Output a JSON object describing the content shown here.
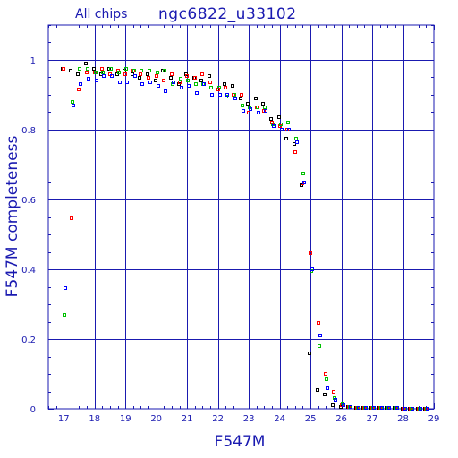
{
  "header": {
    "subset_label": "All chips",
    "field_label": "ngc6822_u33102"
  },
  "colors": {
    "frame": "#1a1ab0",
    "series": [
      "#000000",
      "#ff0000",
      "#00c000",
      "#0000ff"
    ]
  },
  "chart_data": {
    "type": "scatter",
    "xlabel": "F547M",
    "ylabel": "F547M completeness",
    "xlim": [
      16.5,
      29
    ],
    "ylim": [
      0,
      1.1
    ],
    "xticks": [
      17,
      18,
      19,
      20,
      21,
      22,
      23,
      24,
      25,
      26,
      27,
      28,
      29
    ],
    "yticks": [
      0,
      0.2,
      0.4,
      0.6,
      0.8,
      1
    ],
    "ytick_labels": [
      "0",
      "0.2",
      "0.4",
      "0.6",
      "0.8",
      "1"
    ],
    "grid": true,
    "series": [
      {
        "color": "#000000",
        "x": [
          17.0,
          17.25,
          17.5,
          17.75,
          18.0,
          18.25,
          18.5,
          18.75,
          19.0,
          19.25,
          19.5,
          19.75,
          20.0,
          20.25,
          20.5,
          20.75,
          21.0,
          21.25,
          21.5,
          21.75,
          22.0,
          22.25,
          22.5,
          22.75,
          23.0,
          23.25,
          23.5,
          23.75,
          24.0,
          24.25,
          24.5,
          24.75,
          25.0,
          25.25,
          25.5,
          25.75,
          26.0,
          26.25,
          26.5,
          26.75,
          27.0,
          27.25,
          27.5,
          27.75,
          28.0,
          28.25,
          28.5,
          28.75
        ],
        "y": [
          0.975,
          0.97,
          0.96,
          0.99,
          0.975,
          0.96,
          0.975,
          0.96,
          0.97,
          0.96,
          0.95,
          0.96,
          0.94,
          0.97,
          0.95,
          0.93,
          0.96,
          0.95,
          0.94,
          0.955,
          0.915,
          0.93,
          0.925,
          0.89,
          0.875,
          0.89,
          0.875,
          0.83,
          0.835,
          0.775,
          0.76,
          0.64,
          0.16,
          0.055,
          0.04,
          0.01,
          0.005,
          0.005,
          0.003,
          0.003,
          0.002,
          0.002,
          0.002,
          0.002,
          0.001,
          0.001,
          0.001,
          0.001
        ]
      },
      {
        "color": "#ff0000",
        "x": [
          17.0,
          17.25,
          17.5,
          17.75,
          18.0,
          18.25,
          18.5,
          18.75,
          19.0,
          19.25,
          19.5,
          19.75,
          20.0,
          20.25,
          20.5,
          20.75,
          21.0,
          21.25,
          21.5,
          21.75,
          22.0,
          22.25,
          22.5,
          22.75,
          23.0,
          23.25,
          23.5,
          23.75,
          24.0,
          24.25,
          24.5,
          24.75,
          25.0,
          25.25,
          25.5,
          25.75,
          26.0,
          26.25,
          26.5,
          26.75,
          27.0,
          27.25,
          27.5,
          27.75,
          28.0,
          28.25,
          28.5,
          28.75
        ],
        "y": [
          0.975,
          0.545,
          0.915,
          0.965,
          0.965,
          0.975,
          0.96,
          0.97,
          0.96,
          0.97,
          0.96,
          0.95,
          0.955,
          0.94,
          0.96,
          0.935,
          0.955,
          0.95,
          0.96,
          0.935,
          0.915,
          0.92,
          0.9,
          0.9,
          0.85,
          0.865,
          0.855,
          0.82,
          0.81,
          0.8,
          0.735,
          0.645,
          0.445,
          0.245,
          0.1,
          0.05,
          0.01,
          0.005,
          0.003,
          0.003,
          0.002,
          0.002,
          0.002,
          0.002,
          0.001,
          0.001,
          0.001,
          0.001
        ]
      },
      {
        "color": "#00c000",
        "x": [
          17.0,
          17.25,
          17.5,
          17.75,
          18.0,
          18.25,
          18.5,
          18.75,
          19.0,
          19.25,
          19.5,
          19.75,
          20.0,
          20.25,
          20.5,
          20.75,
          21.0,
          21.25,
          21.5,
          21.75,
          22.0,
          22.25,
          22.5,
          22.75,
          23.0,
          23.25,
          23.5,
          23.75,
          24.0,
          24.25,
          24.5,
          24.75,
          25.0,
          25.25,
          25.5,
          25.75,
          26.0,
          26.25,
          26.5,
          26.75,
          27.0,
          27.25,
          27.5,
          27.75,
          28.0,
          28.25,
          28.5,
          28.75
        ],
        "y": [
          0.27,
          0.88,
          0.975,
          0.975,
          0.965,
          0.965,
          0.975,
          0.965,
          0.975,
          0.97,
          0.97,
          0.97,
          0.965,
          0.97,
          0.93,
          0.945,
          0.94,
          0.93,
          0.93,
          0.92,
          0.92,
          0.895,
          0.9,
          0.87,
          0.865,
          0.865,
          0.865,
          0.815,
          0.815,
          0.82,
          0.775,
          0.675,
          0.395,
          0.18,
          0.085,
          0.03,
          0.015,
          0.005,
          0.003,
          0.003,
          0.002,
          0.002,
          0.002,
          0.002,
          0.001,
          0.001,
          0.001,
          0.001
        ]
      },
      {
        "color": "#0000ff",
        "x": [
          17.0,
          17.25,
          17.5,
          17.75,
          18.0,
          18.25,
          18.5,
          18.75,
          19.0,
          19.25,
          19.5,
          19.75,
          20.0,
          20.25,
          20.5,
          20.75,
          21.0,
          21.25,
          21.5,
          21.75,
          22.0,
          22.25,
          22.5,
          22.75,
          23.0,
          23.25,
          23.5,
          23.75,
          24.0,
          24.25,
          24.5,
          24.75,
          25.0,
          25.25,
          25.5,
          25.75,
          26.0,
          26.25,
          26.5,
          26.75,
          27.0,
          27.25,
          27.5,
          27.75,
          28.0,
          28.25,
          28.5,
          28.75
        ],
        "y": [
          0.345,
          0.87,
          0.93,
          0.945,
          0.94,
          0.955,
          0.955,
          0.935,
          0.935,
          0.955,
          0.93,
          0.935,
          0.925,
          0.91,
          0.935,
          0.92,
          0.925,
          0.905,
          0.93,
          0.9,
          0.9,
          0.9,
          0.89,
          0.855,
          0.86,
          0.85,
          0.855,
          0.81,
          0.8,
          0.8,
          0.765,
          0.65,
          0.4,
          0.21,
          0.06,
          0.025,
          0.01,
          0.005,
          0.003,
          0.003,
          0.002,
          0.002,
          0.002,
          0.002,
          0.001,
          0.001,
          0.001,
          0.001
        ]
      }
    ]
  }
}
